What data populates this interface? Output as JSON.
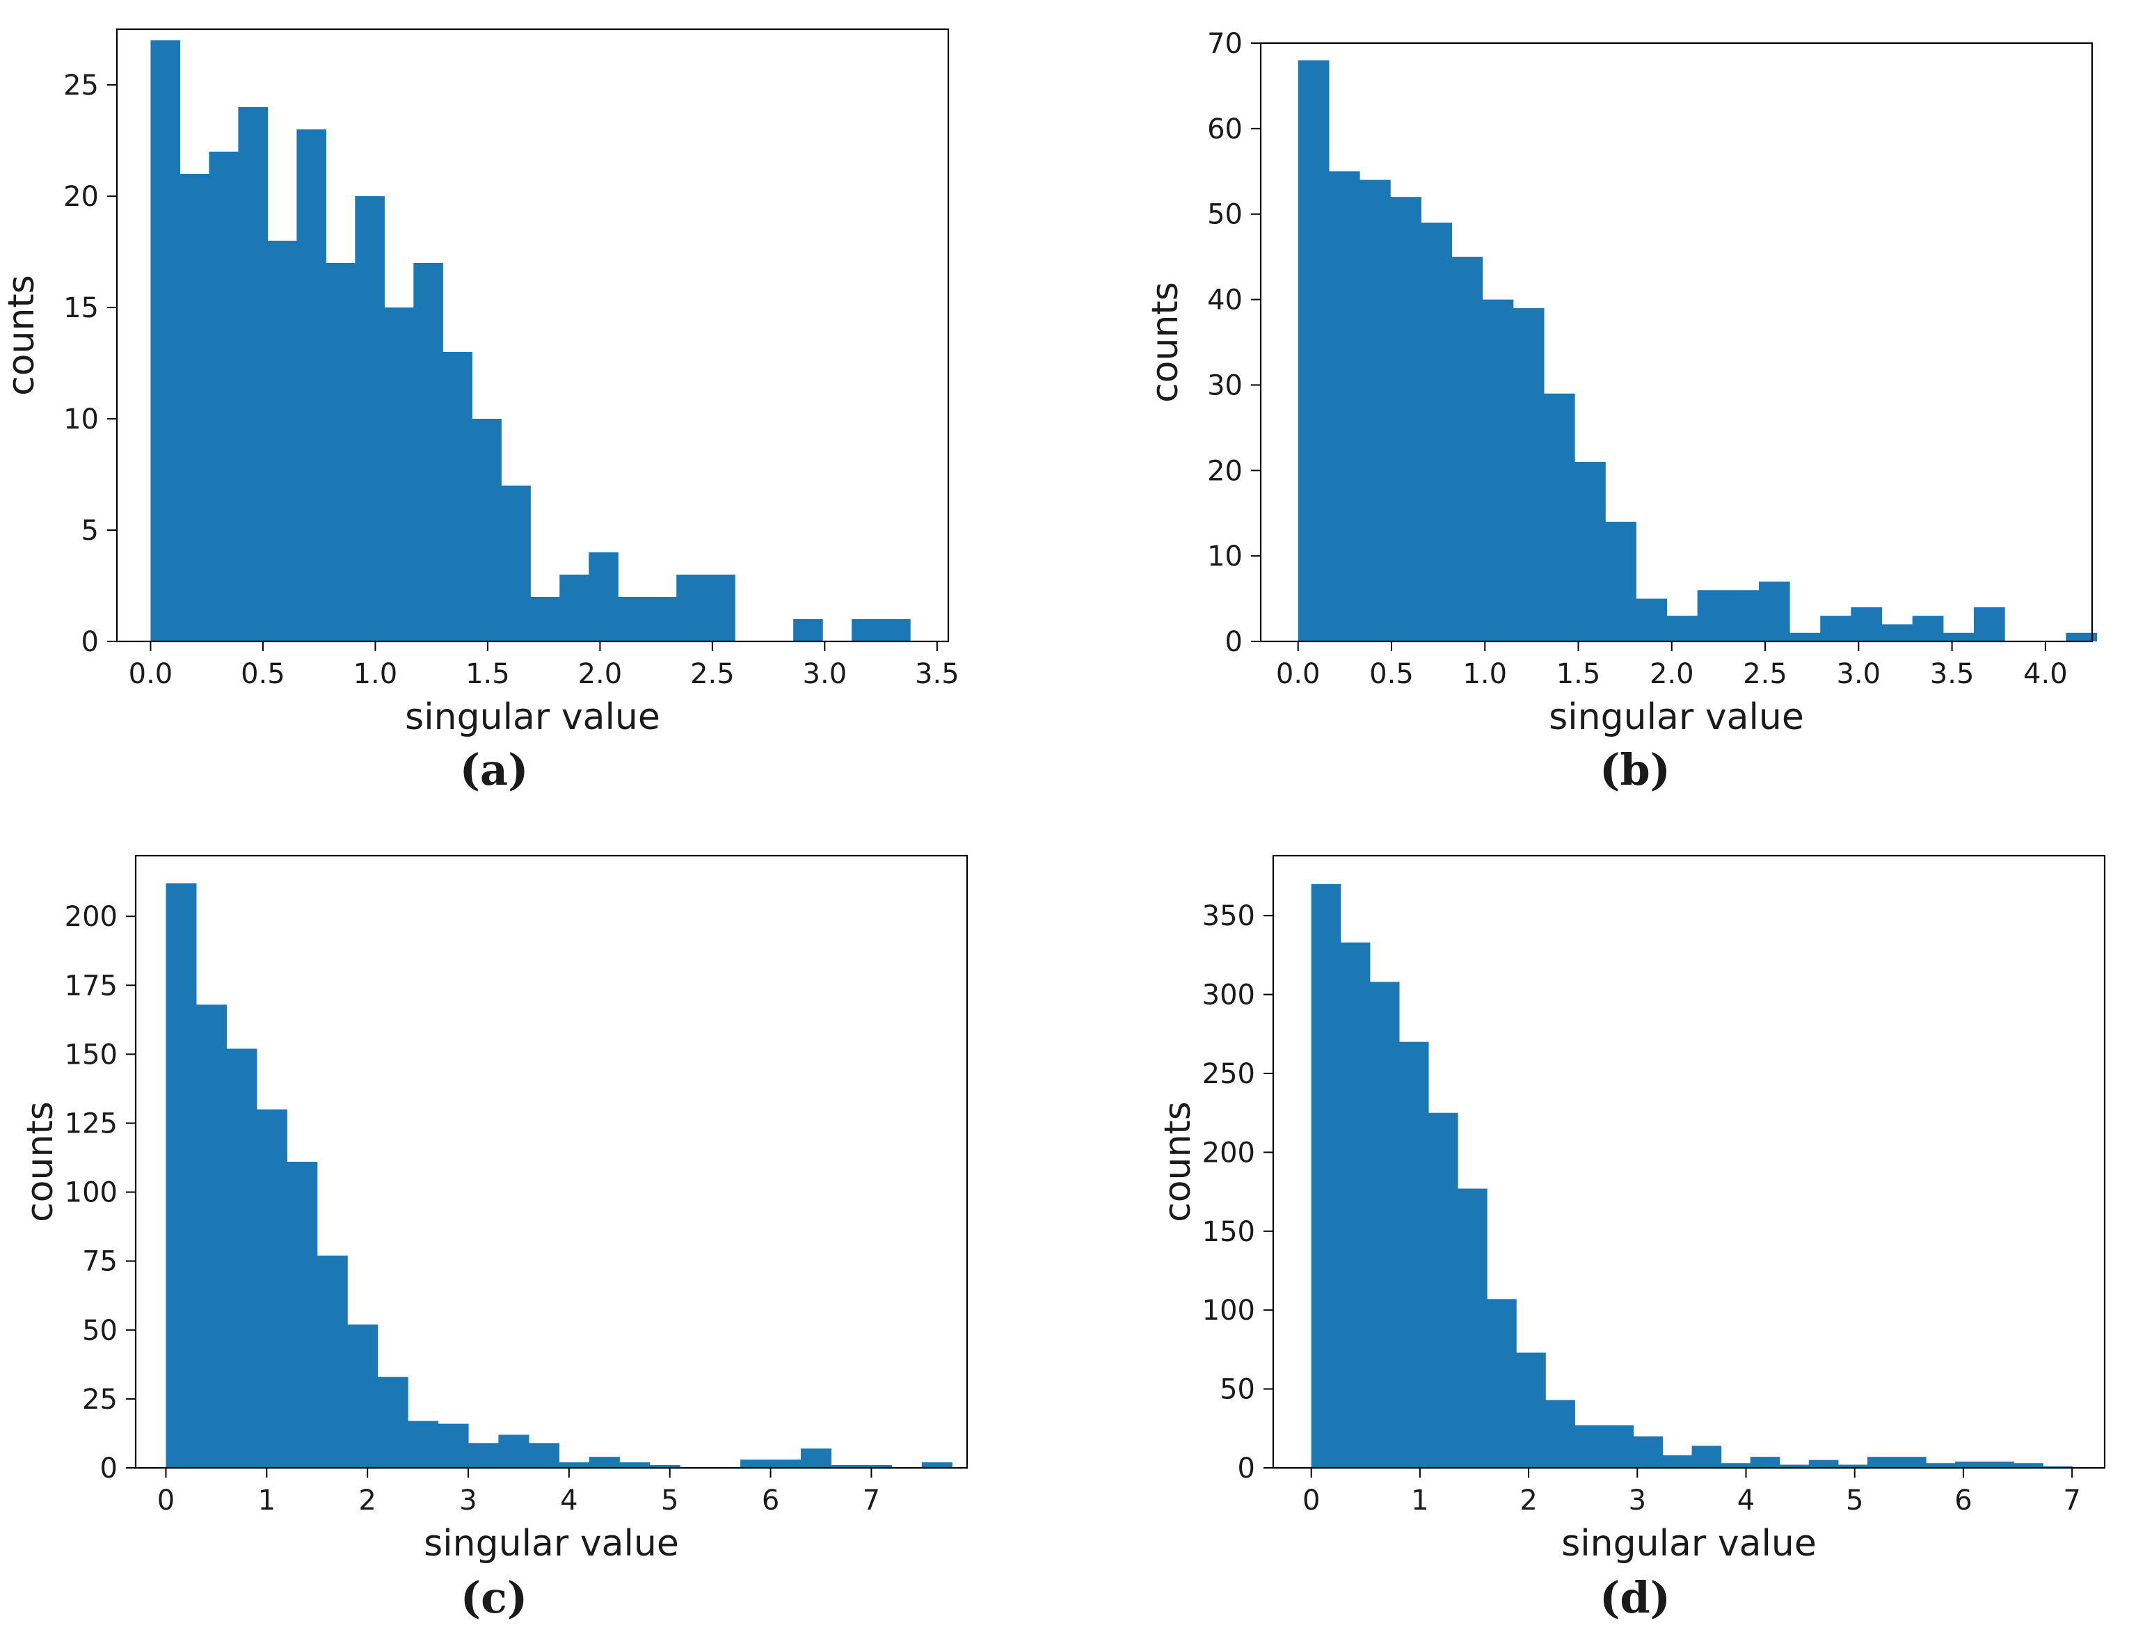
{
  "chart_data": [
    {
      "panel": "(a)",
      "type": "bar",
      "xlabel": "singular value",
      "ylabel": "counts",
      "xlim": [
        -0.15,
        3.55
      ],
      "ylim": [
        0,
        27.5
      ],
      "xticks": [
        0.0,
        0.5,
        1.0,
        1.5,
        2.0,
        2.5,
        3.0,
        3.5
      ],
      "xtick_labels": [
        "0.0",
        "0.5",
        "1.0",
        "1.5",
        "2.0",
        "2.5",
        "3.0",
        "3.5"
      ],
      "yticks": [
        0,
        5,
        10,
        15,
        20,
        25
      ],
      "ytick_labels": [
        "0",
        "5",
        "10",
        "15",
        "20",
        "25"
      ],
      "bin_start": 0.0,
      "bin_width": 0.13,
      "values": [
        27,
        21,
        22,
        24,
        18,
        23,
        17,
        20,
        15,
        17,
        13,
        10,
        7,
        2,
        3,
        4,
        2,
        2,
        3,
        3,
        0,
        0,
        1,
        0,
        1,
        1
      ],
      "color": "#1b78b4"
    },
    {
      "panel": "(b)",
      "type": "bar",
      "xlabel": "singular value",
      "ylabel": "counts",
      "xlim": [
        -0.2,
        4.25
      ],
      "ylim": [
        0,
        70
      ],
      "xticks": [
        0.0,
        0.5,
        1.0,
        1.5,
        2.0,
        2.5,
        3.0,
        3.5,
        4.0
      ],
      "xtick_labels": [
        "0.0",
        "0.5",
        "1.0",
        "1.5",
        "2.0",
        "2.5",
        "3.0",
        "3.5",
        "4.0"
      ],
      "yticks": [
        0,
        10,
        20,
        30,
        40,
        50,
        60,
        70
      ],
      "ytick_labels": [
        "0",
        "10",
        "20",
        "30",
        "40",
        "50",
        "60",
        "70"
      ],
      "bin_start": 0.0,
      "bin_width": 0.1644,
      "values": [
        68,
        55,
        54,
        52,
        49,
        45,
        40,
        39,
        29,
        21,
        14,
        5,
        3,
        6,
        6,
        7,
        1,
        3,
        4,
        2,
        3,
        1,
        4,
        0,
        0,
        1
      ],
      "color": "#1b78b4"
    },
    {
      "panel": "(c)",
      "type": "bar",
      "xlabel": "singular value",
      "ylabel": "counts",
      "xlim": [
        -0.3,
        7.95
      ],
      "ylim": [
        0,
        222
      ],
      "xticks": [
        0,
        1,
        2,
        3,
        4,
        5,
        6,
        7
      ],
      "xtick_labels": [
        "0",
        "1",
        "2",
        "3",
        "4",
        "5",
        "6",
        "7"
      ],
      "yticks": [
        0,
        25,
        50,
        75,
        100,
        125,
        150,
        175,
        200
      ],
      "ytick_labels": [
        "0",
        "25",
        "50",
        "75",
        "100",
        "125",
        "150",
        "175",
        "200"
      ],
      "bin_start": 0.0,
      "bin_width": 0.3,
      "values": [
        212,
        168,
        152,
        130,
        111,
        77,
        52,
        33,
        17,
        16,
        9,
        12,
        9,
        2,
        4,
        2,
        1,
        0,
        0,
        3,
        3,
        7,
        1,
        1,
        0,
        2
      ],
      "color": "#1b78b4"
    },
    {
      "panel": "(d)",
      "type": "bar",
      "xlabel": "singular value",
      "ylabel": "counts",
      "xlim": [
        -0.35,
        7.3
      ],
      "ylim": [
        0,
        388
      ],
      "xticks": [
        0,
        1,
        2,
        3,
        4,
        5,
        6,
        7
      ],
      "xtick_labels": [
        "0",
        "1",
        "2",
        "3",
        "4",
        "5",
        "6",
        "7"
      ],
      "yticks": [
        0,
        50,
        100,
        150,
        200,
        250,
        300,
        350
      ],
      "ytick_labels": [
        "0",
        "50",
        "100",
        "150",
        "200",
        "250",
        "300",
        "350"
      ],
      "bin_start": 0.0,
      "bin_width": 0.2693,
      "values": [
        370,
        333,
        308,
        270,
        225,
        177,
        107,
        73,
        43,
        27,
        27,
        20,
        8,
        14,
        3,
        7,
        2,
        5,
        2,
        7,
        7,
        3,
        4,
        4,
        3,
        1
      ],
      "color": "#1b78b4"
    }
  ]
}
